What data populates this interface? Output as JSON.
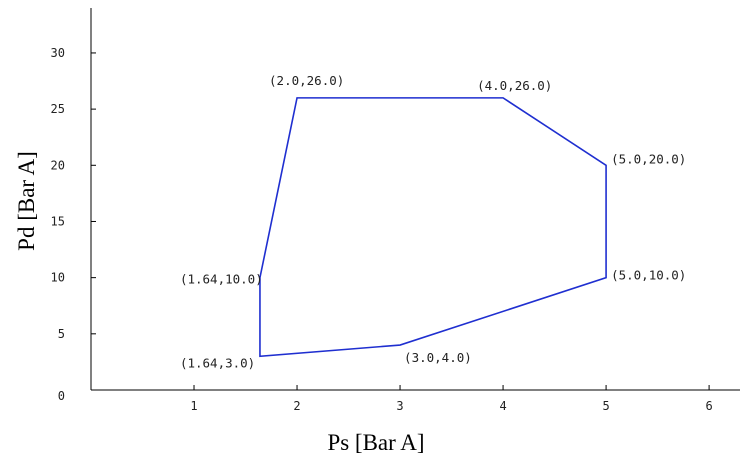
{
  "chart_data": {
    "type": "line",
    "title": "",
    "xlabel": "Ps [Bar A]",
    "ylabel": "Pd [Bar A]",
    "xlim": [
      0,
      6.3
    ],
    "ylim": [
      0,
      34
    ],
    "x_ticks": [
      "1",
      "2",
      "3",
      "4",
      "5",
      "6"
    ],
    "y_ticks": [
      "0",
      "5",
      "10",
      "15",
      "20",
      "25",
      "30"
    ],
    "grid": false,
    "series": [
      {
        "closed": true,
        "color": "#1f2fd0",
        "points": [
          {
            "x": 2.0,
            "y": 26.0,
            "label": "(2.0,26.0)"
          },
          {
            "x": 4.0,
            "y": 26.0,
            "label": "(4.0,26.0)"
          },
          {
            "x": 5.0,
            "y": 20.0,
            "label": "(5.0,20.0)"
          },
          {
            "x": 5.0,
            "y": 10.0,
            "label": "(5.0,10.0)"
          },
          {
            "x": 3.0,
            "y": 4.0,
            "label": "(3.0,4.0)"
          },
          {
            "x": 1.64,
            "y": 3.0,
            "label": "(1.64,3.0)"
          },
          {
            "x": 1.64,
            "y": 10.0,
            "label": "(1.64,10.0)"
          }
        ]
      }
    ]
  }
}
